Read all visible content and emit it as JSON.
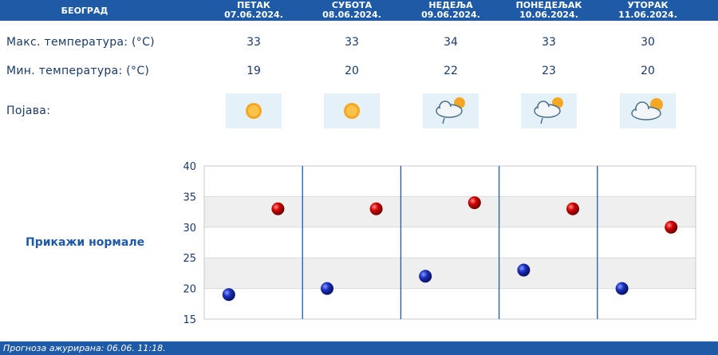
{
  "header": {
    "city": "БЕОГРАД",
    "days": [
      {
        "name": "ПЕТАК",
        "date": "07.06.2024."
      },
      {
        "name": "СУБОТА",
        "date": "08.06.2024."
      },
      {
        "name": "НЕДЕЉА",
        "date": "09.06.2024."
      },
      {
        "name": "ПОНЕДЕЉАК",
        "date": "10.06.2024."
      },
      {
        "name": "УТОРАК",
        "date": "11.06.2024."
      }
    ]
  },
  "rows": {
    "max_label": "Макс. температура: (°C)",
    "min_label": "Мин. температура: (°C)",
    "weather_label": "Појава:",
    "max": [
      "33",
      "33",
      "34",
      "33",
      "30"
    ],
    "min": [
      "19",
      "20",
      "22",
      "23",
      "20"
    ],
    "icons": [
      "sun-icon",
      "sun-icon",
      "sun-cloud-rain-icon",
      "sun-cloud-rain-icon",
      "sun-cloud-icon"
    ]
  },
  "normals_label": "Прикажи нормале",
  "chart_data": {
    "type": "scatter",
    "categories": [
      "ПЕТАК",
      "СУБОТА",
      "НЕДЕЉА",
      "ПОНЕДЕЉАК",
      "УТОРАК"
    ],
    "series": [
      {
        "values": [
          19,
          20,
          22,
          23,
          20
        ],
        "color": "#1a2fbf"
      },
      {
        "values": [
          33,
          33,
          34,
          33,
          30
        ],
        "color": "#c40000"
      }
    ],
    "ylim": [
      15,
      40
    ],
    "yticks": [
      "15",
      "20",
      "25",
      "30",
      "35",
      "40"
    ],
    "grid": true
  },
  "footer": "Прогноза ажурирана:  06.06. 11:18."
}
